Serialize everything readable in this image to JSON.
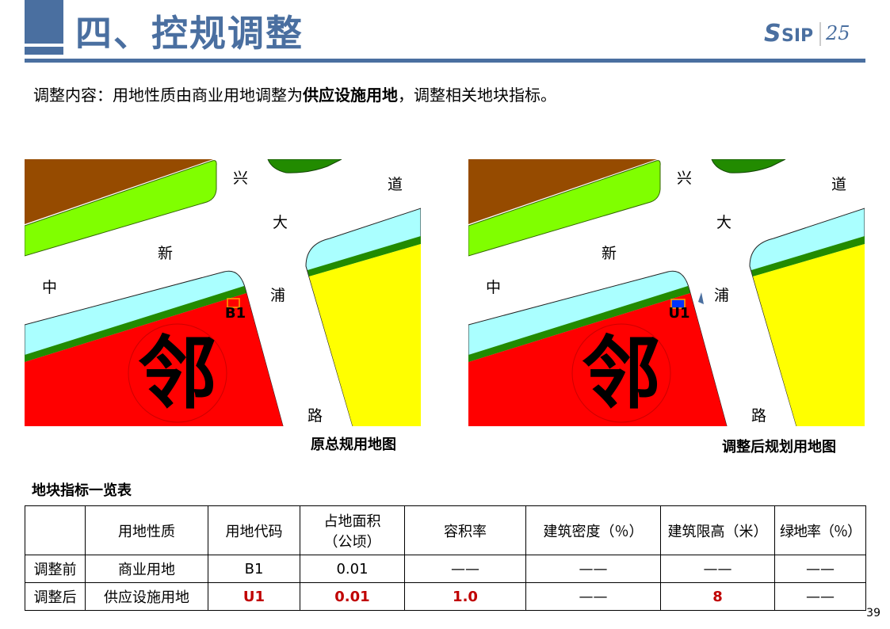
{
  "header": {
    "title": "四、控规调整",
    "logo_text": "SIP",
    "logo_number": "25"
  },
  "intro": {
    "prefix": "调整内容：用地性质由商业用地调整为",
    "bold": "供应设施用地",
    "suffix": "，调整相关地块指标。"
  },
  "maps": [
    {
      "caption": "原总规用地图",
      "parcel_label": "B1",
      "parcel_color": "#ff0000"
    },
    {
      "caption": "调整后规划用地图",
      "parcel_label": "U1",
      "parcel_color": "#0033ff"
    }
  ],
  "map_labels": {
    "xing": "兴",
    "dao": "道",
    "da": "大",
    "xin": "新",
    "zhong": "中",
    "pu": "浦",
    "lu": "路",
    "lin": "邻"
  },
  "colors": {
    "commercial": "#ff0000",
    "residential": "#ffff00",
    "green": "#228b00",
    "lime": "#80ff00",
    "brown": "#964b00",
    "water": "#aaffff",
    "theme": "#4a6fa0"
  },
  "table": {
    "title": "地块指标一览表",
    "headers": [
      "",
      "用地性质",
      "用地代码",
      "占地面积\n（公顷）",
      "容积率",
      "建筑密度（％）",
      "建筑限高（米）",
      "绿地率（％）"
    ],
    "rows": [
      [
        "调整前",
        "商业用地",
        "B1",
        "0.01",
        "——",
        "——",
        "——",
        "——"
      ],
      [
        "调整后",
        "供应设施用地",
        "U1",
        "0.01",
        "1.0",
        "——",
        "8",
        "——"
      ]
    ]
  },
  "page_number": "39"
}
